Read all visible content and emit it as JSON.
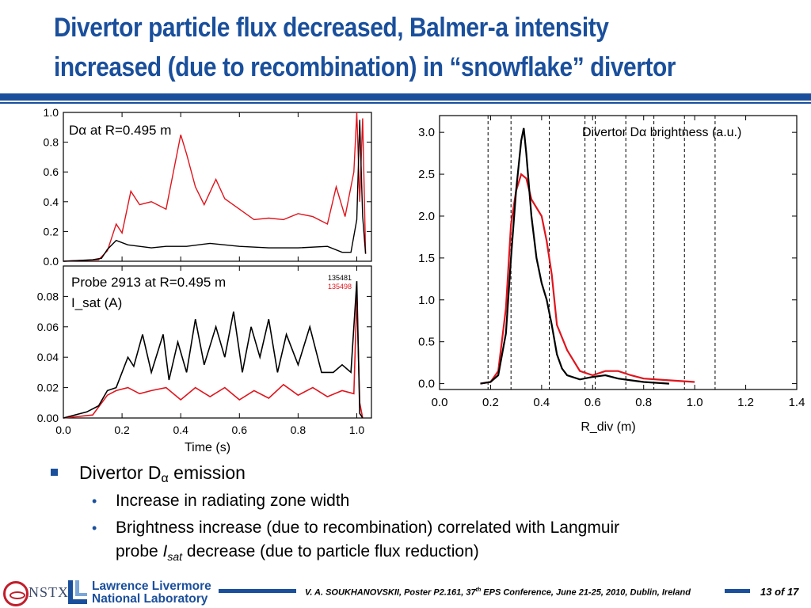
{
  "slide": {
    "title_line1": "Divertor particle flux decreased, Balmer-a intensity",
    "title_line2": "increased (due to recombination) in “snowflake” divertor"
  },
  "bullets": {
    "main_prefix": "Divertor D",
    "main_symbol": "α",
    "main_suffix": " emission",
    "sub1": "Increase in radiating zone width",
    "sub2_line1": "Brightness increase (due to recombination) correlated with Langmuir",
    "sub2_prefix": "probe ",
    "sub2_var": "I",
    "sub2_sub": "sat",
    "sub2_suffix": " decrease (due to particle flux reduction)"
  },
  "footer": {
    "nstx_label": "NSTX",
    "llnl_line1": "Lawrence Livermore",
    "llnl_line2": "National Laboratory",
    "citation_pre": "V. A. SOUKHANOVSKII, Poster P2.161, 37",
    "citation_sup": "th",
    "citation_post": " EPS Conference, June 21-25, 2010, Dublin, Ireland",
    "page": "13 of 17"
  },
  "colors": {
    "accent": "#1a4f9c",
    "series_red": "#e0141c",
    "series_black": "#000000",
    "logo_red": "#c21d2b"
  },
  "chart_data": [
    {
      "type": "line",
      "panel_text": "Dα at R=0.495 m",
      "xlim": [
        0.0,
        1.05
      ],
      "ylim": [
        0.0,
        1.0
      ],
      "yticks": [
        "0.0",
        "0.2",
        "0.4",
        "0.6",
        "0.8",
        "1.0"
      ],
      "series": [
        {
          "name": "135481",
          "color": "#000000",
          "x": [
            0.0,
            0.1,
            0.13,
            0.15,
            0.18,
            0.22,
            0.3,
            0.35,
            0.42,
            0.5,
            0.6,
            0.7,
            0.8,
            0.9,
            0.95,
            0.98,
            1.0,
            1.01,
            1.02,
            1.03
          ],
          "y": [
            0.0,
            0.01,
            0.02,
            0.08,
            0.14,
            0.11,
            0.09,
            0.1,
            0.1,
            0.12,
            0.1,
            0.09,
            0.09,
            0.1,
            0.06,
            0.06,
            0.28,
            0.95,
            0.3,
            0.05
          ]
        },
        {
          "name": "135498",
          "color": "#e0141c",
          "x": [
            0.0,
            0.12,
            0.15,
            0.18,
            0.2,
            0.23,
            0.26,
            0.3,
            0.35,
            0.38,
            0.4,
            0.42,
            0.45,
            0.48,
            0.52,
            0.55,
            0.6,
            0.65,
            0.7,
            0.75,
            0.8,
            0.85,
            0.9,
            0.93,
            0.96,
            0.99,
            1.0,
            1.01,
            1.02,
            1.03
          ],
          "y": [
            0.0,
            0.01,
            0.07,
            0.25,
            0.19,
            0.47,
            0.38,
            0.4,
            0.35,
            0.65,
            0.85,
            0.72,
            0.5,
            0.38,
            0.55,
            0.42,
            0.35,
            0.28,
            0.29,
            0.28,
            0.32,
            0.3,
            0.25,
            0.5,
            0.3,
            0.6,
            1.0,
            0.4,
            0.96,
            0.05
          ]
        }
      ]
    },
    {
      "type": "line",
      "panel_text_line1": "Probe 2913 at R=0.495 m",
      "panel_text_line2": "I_sat (A)",
      "xlabel": "Time (s)",
      "xlim": [
        0.0,
        1.05
      ],
      "ylim": [
        0.0,
        0.1
      ],
      "xticks": [
        "0.0",
        "0.2",
        "0.4",
        "0.6",
        "0.8",
        "1.0"
      ],
      "yticks": [
        "0.00",
        "0.02",
        "0.04",
        "0.06",
        "0.08"
      ],
      "legend": [
        "135481",
        "135498"
      ],
      "series": [
        {
          "name": "135481",
          "color": "#000000",
          "x": [
            0.0,
            0.08,
            0.12,
            0.15,
            0.18,
            0.22,
            0.24,
            0.27,
            0.3,
            0.34,
            0.36,
            0.39,
            0.42,
            0.45,
            0.48,
            0.52,
            0.55,
            0.58,
            0.61,
            0.64,
            0.67,
            0.7,
            0.73,
            0.76,
            0.8,
            0.84,
            0.88,
            0.92,
            0.95,
            0.98,
            1.0,
            1.01,
            1.02
          ],
          "y": [
            0.0,
            0.004,
            0.008,
            0.018,
            0.02,
            0.04,
            0.034,
            0.055,
            0.03,
            0.055,
            0.025,
            0.05,
            0.03,
            0.065,
            0.035,
            0.06,
            0.04,
            0.07,
            0.03,
            0.06,
            0.04,
            0.065,
            0.03,
            0.055,
            0.035,
            0.06,
            0.03,
            0.03,
            0.035,
            0.03,
            0.09,
            0.003,
            0.0
          ]
        },
        {
          "name": "135498",
          "color": "#e0141c",
          "x": [
            0.0,
            0.1,
            0.15,
            0.18,
            0.22,
            0.26,
            0.3,
            0.35,
            0.4,
            0.45,
            0.5,
            0.55,
            0.6,
            0.65,
            0.7,
            0.75,
            0.8,
            0.85,
            0.9,
            0.95,
            0.99,
            1.0,
            1.01,
            1.02
          ],
          "y": [
            0.0,
            0.002,
            0.015,
            0.018,
            0.02,
            0.016,
            0.018,
            0.02,
            0.012,
            0.02,
            0.014,
            0.02,
            0.012,
            0.018,
            0.013,
            0.022,
            0.015,
            0.02,
            0.014,
            0.018,
            0.016,
            0.08,
            0.01,
            0.0
          ]
        }
      ]
    },
    {
      "type": "line",
      "panel_text": "Divertor Dα brightness (a.u.)",
      "xlabel": "R_div (m)",
      "xlim": [
        0.0,
        1.4
      ],
      "ylim": [
        -0.07,
        3.2
      ],
      "xticks": [
        "0.0",
        "0.2",
        "0.4",
        "0.6",
        "0.8",
        "1.0",
        "1.2",
        "1.4"
      ],
      "yticks": [
        "0.0",
        "0.5",
        "1.0",
        "1.5",
        "2.0",
        "2.5",
        "3.0"
      ],
      "vlines": [
        0.19,
        0.28,
        0.43,
        0.57,
        0.61,
        0.73,
        0.84,
        0.96,
        1.08
      ],
      "series": [
        {
          "name": "135481",
          "color": "#000000",
          "x": [
            0.16,
            0.2,
            0.23,
            0.26,
            0.28,
            0.3,
            0.32,
            0.33,
            0.34,
            0.36,
            0.38,
            0.4,
            0.42,
            0.44,
            0.46,
            0.48,
            0.5,
            0.55,
            0.6,
            0.65,
            0.7,
            0.75,
            0.8,
            0.9
          ],
          "y": [
            0.0,
            0.02,
            0.1,
            0.6,
            1.5,
            2.3,
            2.9,
            3.05,
            2.75,
            2.0,
            1.5,
            1.2,
            1.0,
            0.7,
            0.35,
            0.18,
            0.1,
            0.05,
            0.08,
            0.1,
            0.06,
            0.04,
            0.02,
            0.0
          ]
        },
        {
          "name": "135498",
          "color": "#e0141c",
          "x": [
            0.16,
            0.2,
            0.23,
            0.26,
            0.28,
            0.3,
            0.32,
            0.34,
            0.36,
            0.4,
            0.42,
            0.44,
            0.46,
            0.5,
            0.55,
            0.6,
            0.65,
            0.7,
            0.75,
            0.8,
            0.9,
            1.0
          ],
          "y": [
            0.0,
            0.02,
            0.15,
            0.9,
            1.9,
            2.3,
            2.5,
            2.45,
            2.2,
            2.0,
            1.7,
            1.3,
            0.7,
            0.4,
            0.15,
            0.1,
            0.15,
            0.15,
            0.1,
            0.06,
            0.04,
            0.02
          ]
        }
      ]
    }
  ]
}
